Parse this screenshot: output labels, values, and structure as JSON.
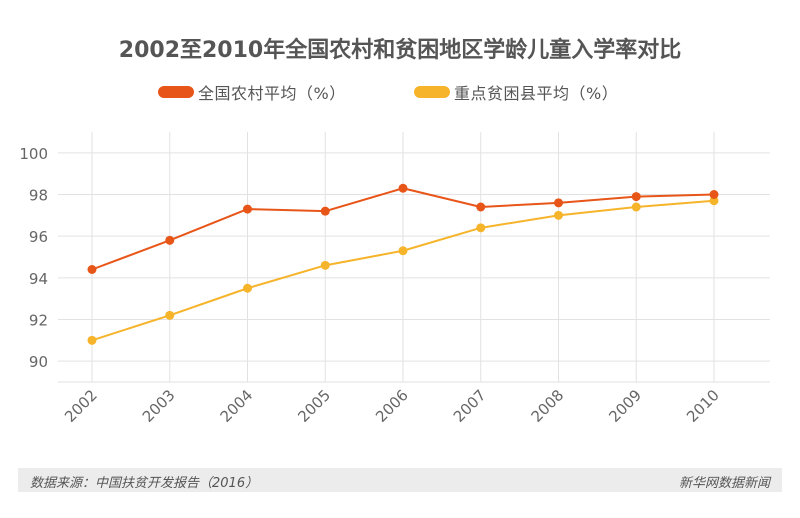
{
  "colors": {
    "series1": "#e85518",
    "series2": "#f6b42a",
    "grid": "#e2e2e2",
    "axis_text": "#666666"
  },
  "chart_data": {
    "type": "line",
    "title": "2002至2010年全国农村和贫困地区学龄儿童入学率对比",
    "x": [
      "2002",
      "2003",
      "2004",
      "2005",
      "2006",
      "2007",
      "2008",
      "2009",
      "2010"
    ],
    "series": [
      {
        "name": "全国农村平均（%）",
        "values": [
          94.4,
          95.8,
          97.3,
          97.2,
          98.3,
          97.4,
          97.6,
          97.9,
          98.0
        ]
      },
      {
        "name": "重点贫困县平均（%）",
        "values": [
          91.0,
          92.2,
          93.5,
          94.6,
          95.3,
          96.4,
          97.0,
          97.4,
          97.7
        ]
      }
    ],
    "yticks": [
      90,
      92,
      94,
      96,
      98,
      100
    ],
    "ylim": [
      89,
      101
    ],
    "xlabel": "",
    "ylabel": "",
    "legend_position": "top"
  },
  "footer": {
    "source": "数据来源：中国扶贫开发报告（2016）",
    "brand": "新华网数据新闻"
  }
}
